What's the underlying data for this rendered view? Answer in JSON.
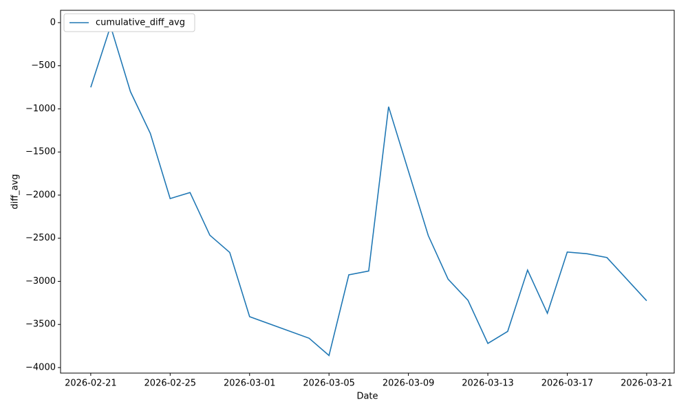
{
  "chart_data": {
    "type": "line",
    "xlabel": "Date",
    "ylabel": "diff_avg",
    "x": [
      "2026-02-21",
      "2026-02-22",
      "2026-02-23",
      "2026-02-24",
      "2026-02-25",
      "2026-02-26",
      "2026-02-27",
      "2026-02-28",
      "2026-03-01",
      "2026-03-04",
      "2026-03-05",
      "2026-03-06",
      "2026-03-07",
      "2026-03-08",
      "2026-03-10",
      "2026-03-11",
      "2026-03-12",
      "2026-03-13",
      "2026-03-14",
      "2026-03-15",
      "2026-03-16",
      "2026-03-17",
      "2026-03-18",
      "2026-03-19",
      "2026-03-21"
    ],
    "series": [
      {
        "name": "cumulative_diff_avg",
        "color": "#1f77b4",
        "values": [
          -750,
          -40,
          -800,
          -1285,
          -2040,
          -1970,
          -2465,
          -2665,
          -3410,
          -3660,
          -3860,
          -2925,
          -2880,
          -975,
          -2470,
          -2975,
          -3220,
          -3720,
          -3580,
          -2870,
          -3370,
          -2660,
          -2680,
          -2725,
          -3225
        ]
      }
    ],
    "xlim": [
      "2026-02-19T11:30",
      "2026-03-22T09:20"
    ],
    "ylim": [
      -4064,
      143
    ],
    "xticks": [
      "2026-02-21",
      "2026-02-25",
      "2026-03-01",
      "2026-03-05",
      "2026-03-09",
      "2026-03-13",
      "2026-03-17",
      "2026-03-21"
    ],
    "yticks": [
      0,
      {
        "value": -500,
        "label": "−500"
      },
      {
        "value": -1000,
        "label": "−1000"
      },
      {
        "value": -1500,
        "label": "−1500"
      },
      {
        "value": -2000,
        "label": "−2000"
      },
      {
        "value": -2500,
        "label": "−2500"
      },
      {
        "value": -3000,
        "label": "−3000"
      },
      {
        "value": -3500,
        "label": "−3500"
      },
      {
        "value": -4000,
        "label": "−4000"
      }
    ],
    "legend": "upper left",
    "grid": false
  }
}
